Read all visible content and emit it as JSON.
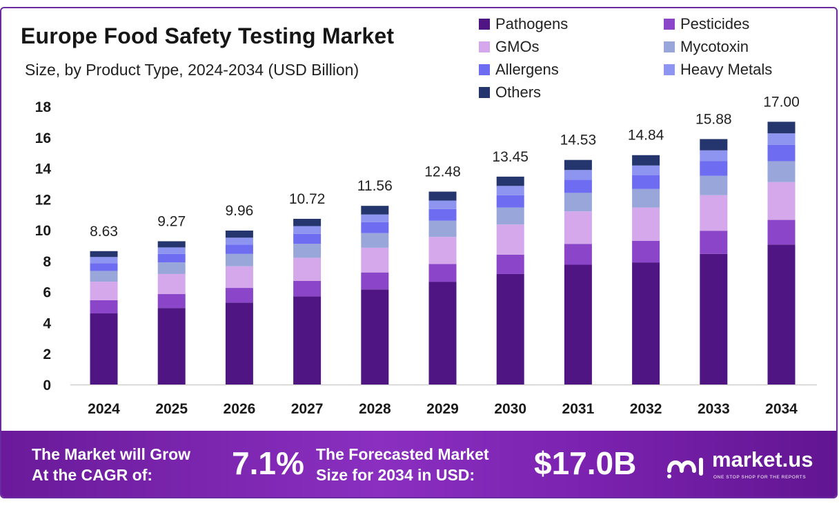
{
  "header": {
    "title": "Europe Food Safety Testing Market",
    "subtitle": "Size, by Product Type, 2024-2034 (USD Billion)"
  },
  "chart_data": {
    "type": "bar",
    "stacked": true,
    "categories": [
      "2024",
      "2025",
      "2026",
      "2027",
      "2028",
      "2029",
      "2030",
      "2031",
      "2032",
      "2033",
      "2034"
    ],
    "totals": [
      8.63,
      9.27,
      9.96,
      10.72,
      11.56,
      12.48,
      13.45,
      14.53,
      14.84,
      15.88,
      17.0
    ],
    "total_labels": [
      "8.63",
      "9.27",
      "9.96",
      "10.72",
      "11.56",
      "12.48",
      "13.45",
      "14.53",
      "14.84",
      "15.88",
      "17.00"
    ],
    "series": [
      {
        "name": "Pathogens",
        "color": "#4f1683",
        "values": [
          4.6,
          4.95,
          5.3,
          5.7,
          6.15,
          6.65,
          7.15,
          7.75,
          7.9,
          8.45,
          9.05
        ]
      },
      {
        "name": "Pesticides",
        "color": "#8a45c8",
        "values": [
          0.85,
          0.9,
          0.95,
          1.0,
          1.1,
          1.15,
          1.25,
          1.35,
          1.4,
          1.5,
          1.6
        ]
      },
      {
        "name": "GMOs",
        "color": "#d5a8ec",
        "values": [
          1.2,
          1.3,
          1.4,
          1.5,
          1.6,
          1.75,
          1.95,
          2.1,
          2.15,
          2.3,
          2.45
        ]
      },
      {
        "name": "Mycotoxin",
        "color": "#98a6da",
        "values": [
          0.7,
          0.75,
          0.8,
          0.9,
          0.95,
          1.05,
          1.1,
          1.2,
          1.2,
          1.25,
          1.35
        ]
      },
      {
        "name": "Allergens",
        "color": "#6e6cf0",
        "values": [
          0.5,
          0.55,
          0.6,
          0.65,
          0.7,
          0.75,
          0.8,
          0.85,
          0.9,
          0.95,
          1.05
        ]
      },
      {
        "name": "Heavy Metals",
        "color": "#8d95f0",
        "values": [
          0.4,
          0.42,
          0.45,
          0.5,
          0.5,
          0.55,
          0.6,
          0.63,
          0.62,
          0.7,
          0.75
        ]
      },
      {
        "name": "Others",
        "color": "#25366e",
        "values": [
          0.38,
          0.4,
          0.46,
          0.47,
          0.56,
          0.58,
          0.6,
          0.65,
          0.67,
          0.73,
          0.75
        ]
      }
    ],
    "ylim": [
      0,
      18
    ],
    "yticks": [
      0,
      2,
      4,
      6,
      8,
      10,
      12,
      14,
      16,
      18
    ],
    "legend_position": "top-right",
    "grid": false
  },
  "footer": {
    "cagr_text_line1": "The Market will Grow",
    "cagr_text_line2": "At the CAGR of:",
    "cagr_value": "7.1%",
    "forecast_text_line1": "The Forecasted Market",
    "forecast_text_line2": "Size for 2034 in USD:",
    "forecast_value": "$17.0B",
    "brand_name": "market.us",
    "brand_tagline": "ONE STOP SHOP FOR THE REPORTS"
  }
}
